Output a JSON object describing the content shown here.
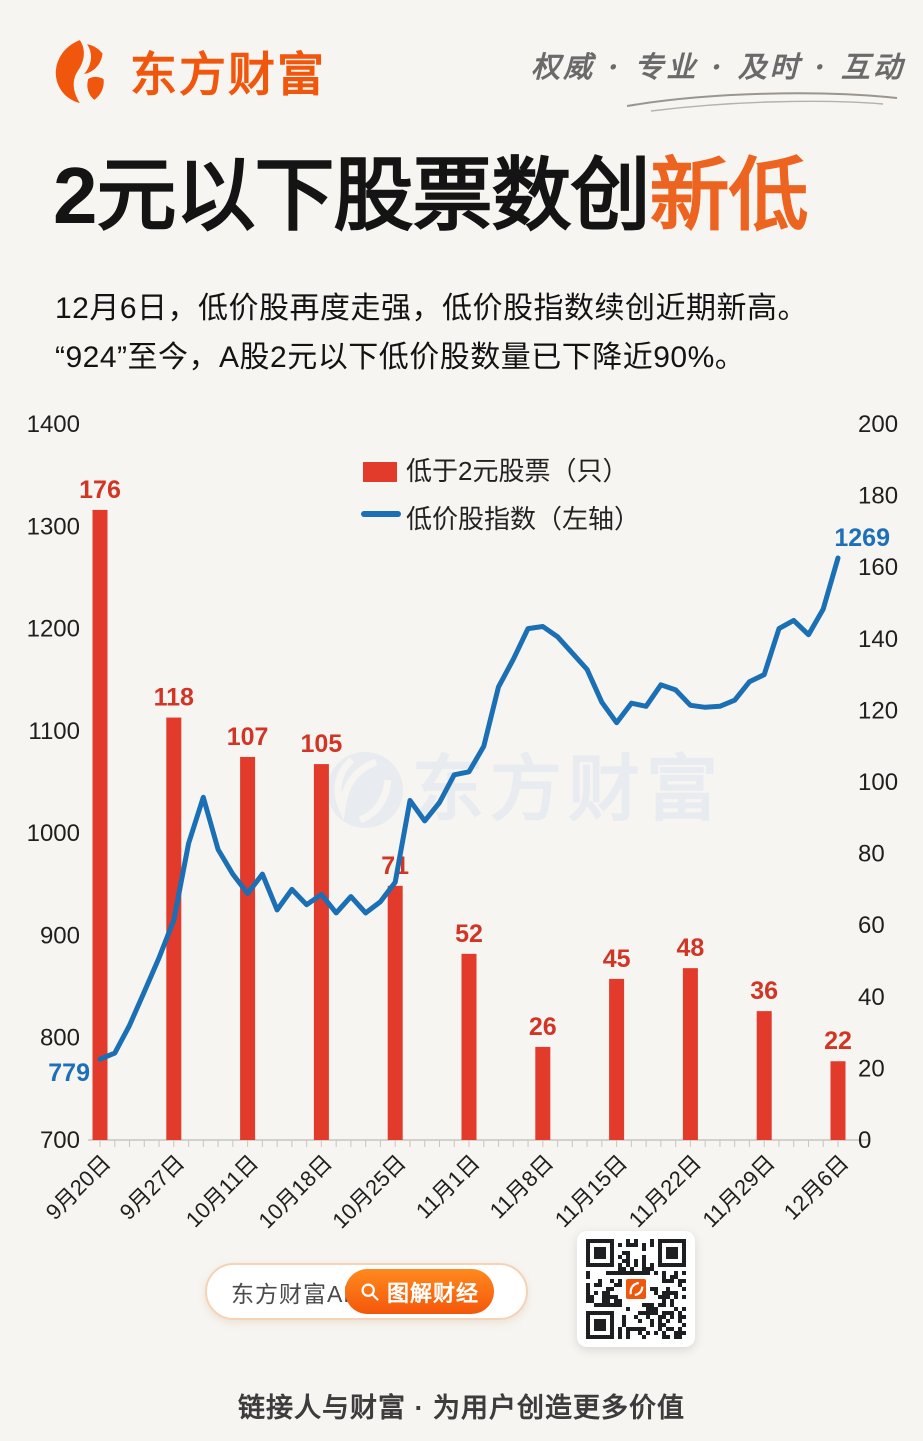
{
  "header": {
    "logo_text": "东方财富",
    "tagline": "权威 · 专业 · 及时 · 互动"
  },
  "title": {
    "black": "2元以下股票数创",
    "highlight": "新低"
  },
  "intro": {
    "line1": "12月6日，低价股再度走强，低价股指数续创近期新高。",
    "line2": "“924”至今，A股2元以下低价股数量已下降近90%。"
  },
  "chart_data": {
    "type": "bar+line dual-axis combo",
    "legend_position": "top-center",
    "grid": false,
    "watermark": "东方财富",
    "legend": [
      {
        "label": "低于2元股票（只）",
        "type": "bar",
        "color": "#e23b2b"
      },
      {
        "label": "低价股指数（左轴）",
        "type": "line",
        "color": "#1b6fb5"
      }
    ],
    "categories": [
      "9月20日",
      "9月27日",
      "10月11日",
      "10月18日",
      "10月25日",
      "11月1日",
      "11月8日",
      "11月15日",
      "11月22日",
      "11月29日",
      "12月6日"
    ],
    "bar_series": {
      "name": "低于2元股票（只）",
      "axis": "right",
      "values": [
        176,
        118,
        107,
        105,
        71,
        52,
        26,
        45,
        48,
        36,
        22
      ]
    },
    "line_series": {
      "name": "低价股指数（左轴）",
      "axis": "left",
      "points_per_category_interval": 5,
      "first_point_label": "779",
      "last_point_label": "1269",
      "values": [
        779,
        785,
        812,
        845,
        878,
        915,
        990,
        1035,
        984,
        960,
        941,
        960,
        925,
        945,
        930,
        940,
        922,
        938,
        922,
        933,
        952,
        1032,
        1012,
        1030,
        1057,
        1060,
        1085,
        1143,
        1170,
        1200,
        1202,
        1192,
        1176,
        1160,
        1128,
        1108,
        1127,
        1124,
        1145,
        1140,
        1125,
        1123,
        1124,
        1130,
        1148,
        1155,
        1200,
        1208,
        1194,
        1219,
        1269
      ]
    },
    "left_axis": {
      "min": 700,
      "max": 1400,
      "step": 100
    },
    "right_axis": {
      "min": 0,
      "max": 200,
      "step": 20
    },
    "colors": {
      "bar": "#e23b2b",
      "line": "#1b6fb5",
      "bar_label": "#d03525",
      "line_label": "#1c6fb8",
      "axis_text": "#1f1f1f",
      "axis_line": "#c9c5c0",
      "legend_text": "#222222",
      "watermark": "#dce4ef"
    }
  },
  "footer": {
    "app_label": "东方财富APP",
    "cta_label": "图解财经",
    "slogan": "链接人与财富 · 为用户创造更多价值"
  },
  "colors": {
    "accent_orange": "#f1560d",
    "title_highlight": "#ed6320",
    "background": "#f7f5f1"
  }
}
